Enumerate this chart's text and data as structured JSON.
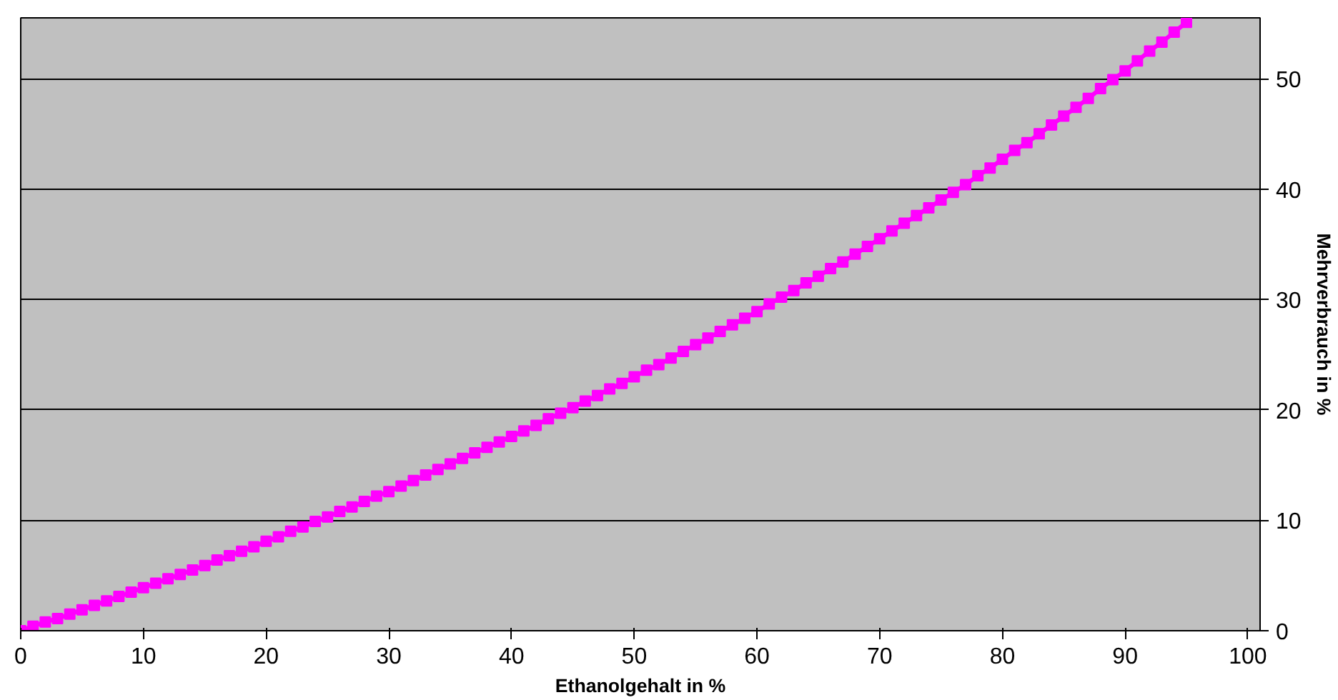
{
  "chart_data": {
    "type": "line",
    "xlabel": "Ethanolgehalt in %",
    "ylabel": "Mehrverbrauch in %",
    "x": [
      0,
      1,
      2,
      3,
      4,
      5,
      6,
      7,
      8,
      9,
      10,
      11,
      12,
      13,
      14,
      15,
      16,
      17,
      18,
      19,
      20,
      21,
      22,
      23,
      24,
      25,
      26,
      27,
      28,
      29,
      30,
      31,
      32,
      33,
      34,
      35,
      36,
      37,
      38,
      39,
      40,
      41,
      42,
      43,
      44,
      45,
      46,
      47,
      48,
      49,
      50,
      51,
      52,
      53,
      54,
      55,
      56,
      57,
      58,
      59,
      60,
      61,
      62,
      63,
      64,
      65,
      66,
      67,
      68,
      69,
      70,
      71,
      72,
      73,
      74,
      75,
      76,
      77,
      78,
      79,
      80,
      81,
      82,
      83,
      84,
      85,
      86,
      87,
      88,
      89,
      90,
      91,
      92,
      93,
      94,
      95
    ],
    "series": [
      {
        "color": "#ff00ff",
        "values": [
          0,
          0.4,
          0.8,
          1.1,
          1.5,
          1.9,
          2.3,
          2.7,
          3.1,
          3.5,
          3.9,
          4.3,
          4.7,
          5.1,
          5.5,
          5.9,
          6.4,
          6.8,
          7.2,
          7.6,
          8.1,
          8.5,
          9.0,
          9.4,
          9.9,
          10.3,
          10.8,
          11.2,
          11.7,
          12.2,
          12.6,
          13.1,
          13.6,
          14.1,
          14.6,
          15.1,
          15.6,
          16.1,
          16.6,
          17.1,
          17.6,
          18.1,
          18.6,
          19.2,
          19.7,
          20.2,
          20.8,
          21.3,
          21.9,
          22.4,
          23.0,
          23.6,
          24.1,
          24.7,
          25.3,
          25.9,
          26.5,
          27.1,
          27.7,
          28.3,
          28.9,
          29.6,
          30.2,
          30.8,
          31.5,
          32.1,
          32.8,
          33.4,
          34.1,
          34.8,
          35.5,
          36.2,
          36.9,
          37.6,
          38.3,
          39.0,
          39.7,
          40.4,
          41.2,
          41.9,
          42.7,
          43.5,
          44.2,
          45.0,
          45.8,
          46.6,
          47.4,
          48.2,
          49.1,
          49.9,
          50.7,
          51.6,
          52.5,
          53.3,
          54.2,
          55.1
        ]
      }
    ],
    "xlim": [
      0,
      101
    ],
    "xticks": [
      0,
      10,
      20,
      30,
      40,
      50,
      60,
      70,
      80,
      90,
      100
    ],
    "ylim": [
      0,
      55.5
    ],
    "yticks": [
      0,
      10,
      20,
      30,
      40,
      50
    ],
    "grid": "y",
    "marker": "square",
    "line_style": "solid"
  }
}
